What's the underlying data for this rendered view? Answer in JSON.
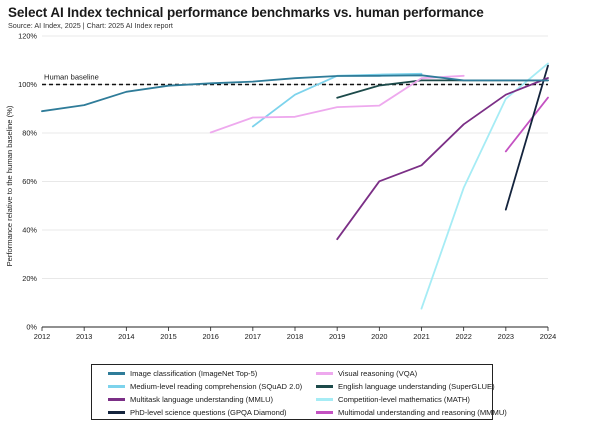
{
  "header": {
    "title": "Select AI Index technical performance benchmarks vs. human performance",
    "source": "Source: AI Index, 2025 | Chart: 2025 AI Index report"
  },
  "chart_data": {
    "type": "line",
    "ylabel": "Performance relative to the human baseline (%)",
    "xlabel": "",
    "xlim": [
      2012,
      2024
    ],
    "ylim": [
      0,
      120
    ],
    "x_ticks": [
      "2012",
      "2013",
      "2014",
      "2015",
      "2016",
      "2017",
      "2018",
      "2019",
      "2020",
      "2021",
      "2022",
      "2023",
      "2024"
    ],
    "y_ticks": [
      "0%",
      "20%",
      "40%",
      "60%",
      "80%",
      "100%",
      "120%"
    ],
    "grid": "horizontal",
    "baseline": {
      "label": "Human baseline",
      "value": 100
    },
    "legend_position": "bottom",
    "series": [
      {
        "name": "Image classification (ImageNet Top-5)",
        "color": "#2f7c99",
        "x": [
          2012,
          2013,
          2014,
          2015,
          2016,
          2017,
          2018,
          2019,
          2020,
          2021,
          2022,
          2023,
          2024
        ],
        "y": [
          89,
          91.5,
          97,
          99.5,
          100.5,
          101.2,
          102.6,
          103.5,
          103.6,
          103.8,
          101.7,
          101.7,
          101.7
        ]
      },
      {
        "name": "Visual reasoning (VQA)",
        "color": "#eea9ee",
        "x": [
          2016,
          2017,
          2018,
          2019,
          2020,
          2021,
          2022
        ],
        "y": [
          80.2,
          86.4,
          86.7,
          90.7,
          91.3,
          102.6,
          103.6
        ]
      },
      {
        "name": "Medium-level reading comprehension (SQuAD 2.0)",
        "color": "#7dd3ec",
        "x": [
          2017,
          2018,
          2019,
          2020,
          2021
        ],
        "y": [
          82.7,
          95.8,
          103.6,
          104.1,
          104.4
        ]
      },
      {
        "name": "English language understanding (SuperGLUE)",
        "color": "#1c4a4a",
        "x": [
          2019,
          2020,
          2021,
          2022,
          2023,
          2024
        ],
        "y": [
          94.5,
          99.6,
          101.7,
          101.7,
          101.7,
          101.7
        ]
      },
      {
        "name": "Multitask language understanding (MMLU)",
        "color": "#7b2f86",
        "x": [
          2019,
          2020,
          2021,
          2022,
          2023,
          2024
        ],
        "y": [
          36.2,
          60.1,
          66.7,
          83.6,
          95.8,
          102.7
        ]
      },
      {
        "name": "Competition-level mathematics (MATH)",
        "color": "#a6ecf5",
        "x": [
          2021,
          2022,
          2023,
          2024
        ],
        "y": [
          7.6,
          57.4,
          94.1,
          108.7
        ]
      },
      {
        "name": "PhD-level science questions (GPQA Diamond)",
        "color": "#14243d",
        "x": [
          2023,
          2024
        ],
        "y": [
          48.4,
          107.8
        ]
      },
      {
        "name": "Multimodal understanding and reasoning (MMMU)",
        "color": "#c452c2",
        "x": [
          2023,
          2024
        ],
        "y": [
          72.4,
          94.6
        ]
      }
    ]
  }
}
